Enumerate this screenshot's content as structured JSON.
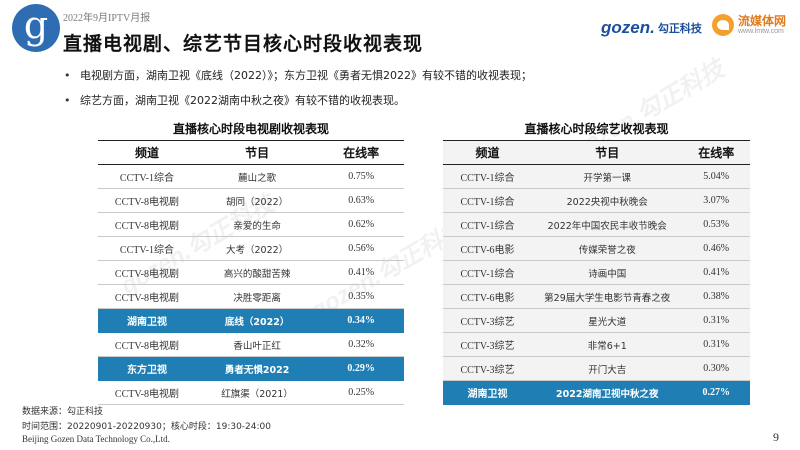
{
  "header": {
    "report_label": "2022年9月IPTV月报",
    "title": "直播电视剧、综艺节目核心时段收视表现",
    "logo_letter": "g",
    "gozen_mark": "gozen.",
    "gozen_cn": "勾正科技",
    "lm_name": "流媒体网",
    "lm_url": "www.lmtw.com"
  },
  "bullets": [
    "电视剧方面，湖南卫视《底线（2022）》；东方卫视《勇者无惧2022》有较不错的收视表现；",
    "综艺方面，湖南卫视《2022湖南中秋之夜》有较不错的收视表现。"
  ],
  "left_table": {
    "title": "直播核心时段电视剧收视表现",
    "headers": [
      "频道",
      "节目",
      "在线率"
    ],
    "rows": [
      {
        "channel": "CCTV-1综合",
        "program": "麓山之歌",
        "rate": "0.75%",
        "highlight": false
      },
      {
        "channel": "CCTV-8电视剧",
        "program": "胡同（2022）",
        "rate": "0.63%",
        "highlight": false
      },
      {
        "channel": "CCTV-8电视剧",
        "program": "亲爱的生命",
        "rate": "0.62%",
        "highlight": false
      },
      {
        "channel": "CCTV-1综合",
        "program": "大考（2022）",
        "rate": "0.56%",
        "highlight": false
      },
      {
        "channel": "CCTV-8电视剧",
        "program": "高兴的酸甜苦辣",
        "rate": "0.41%",
        "highlight": false
      },
      {
        "channel": "CCTV-8电视剧",
        "program": "决胜零距离",
        "rate": "0.35%",
        "highlight": false
      },
      {
        "channel": "湖南卫视",
        "program": "底线（2022）",
        "rate": "0.34%",
        "highlight": true
      },
      {
        "channel": "CCTV-8电视剧",
        "program": "香山叶正红",
        "rate": "0.32%",
        "highlight": false
      },
      {
        "channel": "东方卫视",
        "program": "勇者无惧2022",
        "rate": "0.29%",
        "highlight": true
      },
      {
        "channel": "CCTV-8电视剧",
        "program": "红旗渠（2021）",
        "rate": "0.25%",
        "highlight": false
      }
    ]
  },
  "right_table": {
    "title": "直播核心时段综艺收视表现",
    "headers": [
      "频道",
      "节目",
      "在线率"
    ],
    "rows": [
      {
        "channel": "CCTV-1综合",
        "program": "开学第一课",
        "rate": "5.04%",
        "highlight": false
      },
      {
        "channel": "CCTV-1综合",
        "program": "2022央视中秋晚会",
        "rate": "3.07%",
        "highlight": false
      },
      {
        "channel": "CCTV-1综合",
        "program": "2022年中国农民丰收节晚会",
        "rate": "0.53%",
        "highlight": false
      },
      {
        "channel": "CCTV-6电影",
        "program": "传媒荣誉之夜",
        "rate": "0.46%",
        "highlight": false
      },
      {
        "channel": "CCTV-1综合",
        "program": "诗画中国",
        "rate": "0.41%",
        "highlight": false
      },
      {
        "channel": "CCTV-6电影",
        "program": "第29届大学生电影节青春之夜",
        "rate": "0.38%",
        "highlight": false
      },
      {
        "channel": "CCTV-3综艺",
        "program": "星光大道",
        "rate": "0.31%",
        "highlight": false
      },
      {
        "channel": "CCTV-3综艺",
        "program": "非常6+1",
        "rate": "0.31%",
        "highlight": false
      },
      {
        "channel": "CCTV-3综艺",
        "program": "开门大吉",
        "rate": "0.30%",
        "highlight": false
      },
      {
        "channel": "湖南卫视",
        "program": "2022湖南卫视中秋之夜",
        "rate": "0.27%",
        "highlight": true
      }
    ]
  },
  "footer": {
    "source": "数据来源：勾正科技",
    "period": "时间范围：20220901-20220930；核心时段：19:30-24:00",
    "company": "Beijing Gozen Data Technology Co.,Ltd.",
    "page_number": "9"
  },
  "watermark": "gozen.勾正科技"
}
